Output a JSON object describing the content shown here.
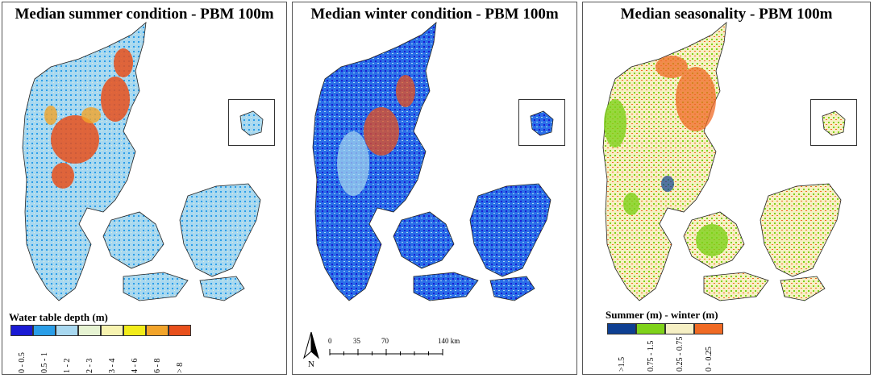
{
  "panels": [
    {
      "title": "Median summer condition - PBM 100m",
      "legend": {
        "title": "Water table depth (m)",
        "classes": [
          {
            "label": "0 - 0.5",
            "color": "#1a1ad4"
          },
          {
            "label": "0.5 - 1",
            "color": "#2a9ee8"
          },
          {
            "label": "1 - 2",
            "color": "#a8d8f0"
          },
          {
            "label": "2 - 3",
            "color": "#e6f3d2"
          },
          {
            "label": "3 - 4",
            "color": "#f7f3b0"
          },
          {
            "label": "4 - 6",
            "color": "#f2ec1a"
          },
          {
            "label": "6 - 8",
            "color": "#f2a42a"
          },
          {
            "label": "> 8",
            "color": "#e8501c"
          }
        ]
      }
    },
    {
      "title": "Median winter condition - PBM 100m",
      "scalebar": {
        "ticks": [
          "0",
          "35",
          "70",
          "140 km"
        ],
        "north": "N"
      }
    },
    {
      "title": "Median seasonality - PBM 100m",
      "legend": {
        "title": "Summer (m) - winter (m)",
        "classes": [
          {
            "label": ">1.5",
            "color": "#0e3f92"
          },
          {
            "label": "0.75 - 1.5",
            "color": "#7fd21a"
          },
          {
            "label": "0.25 - 0.75",
            "color": "#f6f0c4"
          },
          {
            "label": "0 - 0.25",
            "color": "#f06a24"
          }
        ]
      }
    }
  ]
}
